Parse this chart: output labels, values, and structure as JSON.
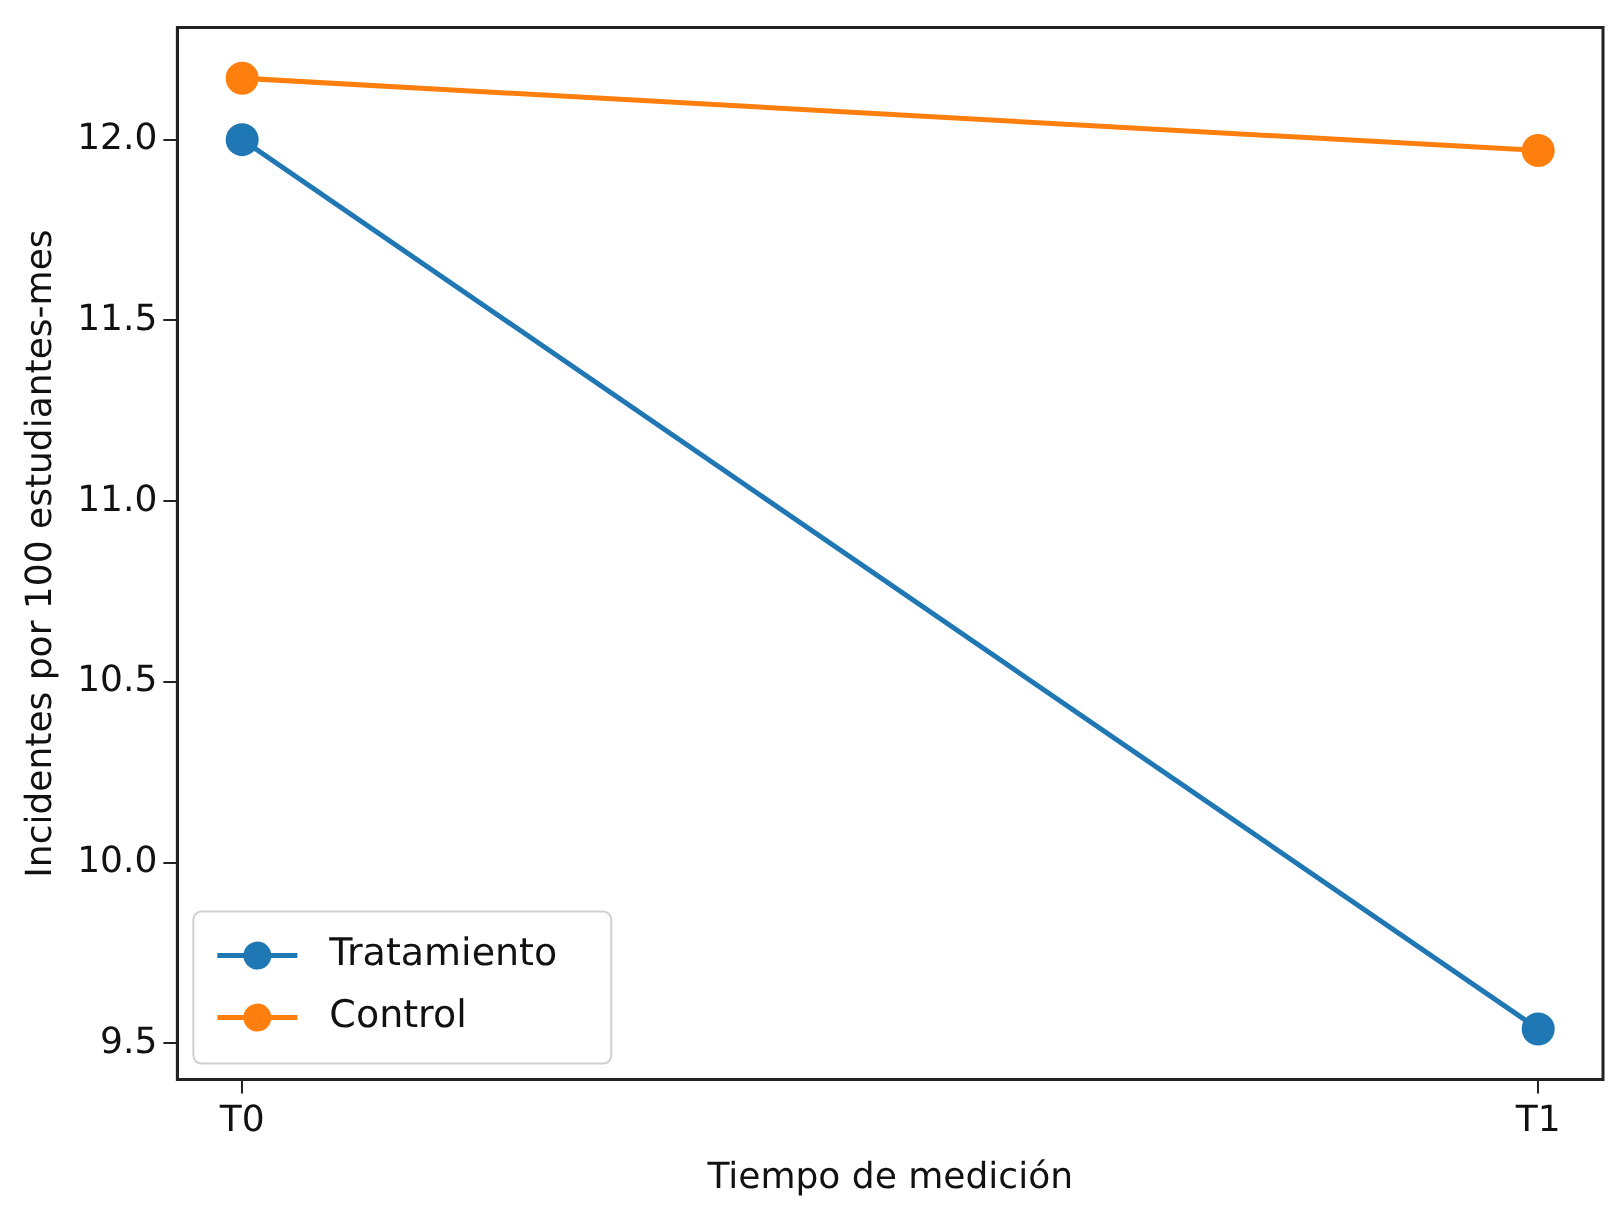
{
  "chart_data": {
    "type": "line",
    "xlabel": "Tiempo de medición",
    "ylabel": "Incidentes por 100 estudiantes-mes",
    "categories": [
      "T0",
      "T1"
    ],
    "series": [
      {
        "name": "Tratamiento",
        "color": "#1f77b4",
        "values": [
          12.0,
          9.54
        ]
      },
      {
        "name": "Control",
        "color": "#ff7f0e",
        "values": [
          12.17,
          11.97
        ]
      }
    ],
    "ylim": [
      9.4,
      12.31
    ],
    "yticks": [
      {
        "value": 9.5,
        "label": "9.5"
      },
      {
        "value": 10.0,
        "label": "10.0"
      },
      {
        "value": 10.5,
        "label": "10.5"
      },
      {
        "value": 11.0,
        "label": "11.0"
      },
      {
        "value": 11.5,
        "label": "11.5"
      },
      {
        "value": 12.0,
        "label": "12.0"
      }
    ],
    "grid": false,
    "legend": "bottom left",
    "marker": "circle",
    "line_style": "solid"
  }
}
